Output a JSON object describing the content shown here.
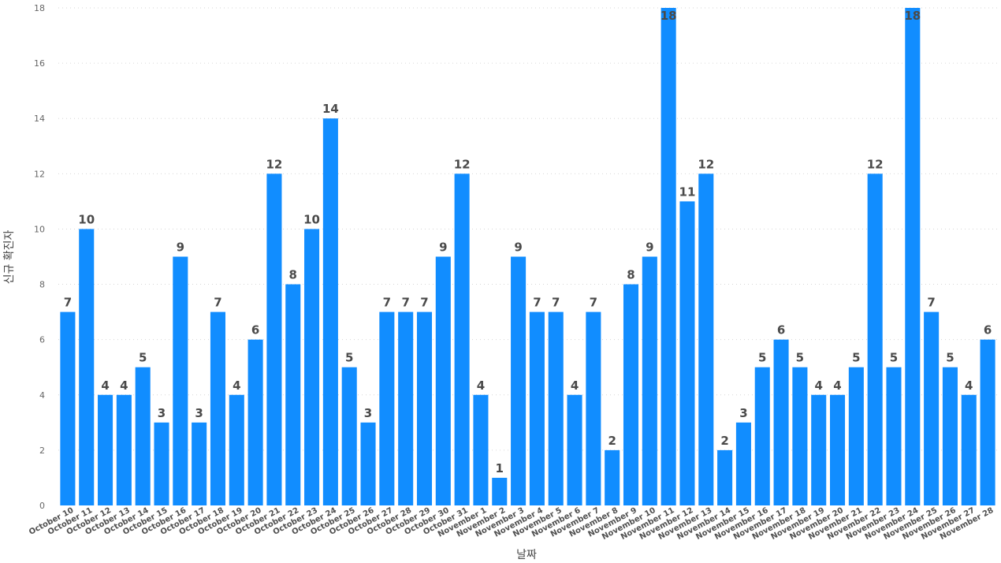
{
  "chart_data": {
    "type": "bar",
    "title": "",
    "xlabel": "날짜",
    "ylabel": "신규 확진자",
    "ylim": [
      0,
      18
    ],
    "yticks": [
      0,
      2,
      4,
      6,
      8,
      10,
      12,
      14,
      16,
      18
    ],
    "grid": true,
    "bar_color": "#118DFF",
    "categories": [
      "October 10",
      "October 11",
      "October 12",
      "October 13",
      "October 14",
      "October 15",
      "October 16",
      "October 17",
      "October 18",
      "October 19",
      "October 20",
      "October 21",
      "October 22",
      "October 23",
      "October 24",
      "October 25",
      "October 26",
      "October 27",
      "October 28",
      "October 29",
      "October 30",
      "October 31",
      "November 1",
      "November 2",
      "November 3",
      "November 4",
      "November 5",
      "November 6",
      "November 7",
      "November 8",
      "November 9",
      "November 10",
      "November 11",
      "November 12",
      "November 13",
      "November 14",
      "November 15",
      "November 16",
      "November 17",
      "November 18",
      "November 19",
      "November 20",
      "November 21",
      "November 22",
      "November 23",
      "November 24",
      "November 25",
      "November 26",
      "November 27",
      "November 28"
    ],
    "values": [
      7,
      10,
      4,
      4,
      5,
      3,
      9,
      3,
      7,
      4,
      6,
      12,
      8,
      10,
      14,
      5,
      3,
      7,
      7,
      7,
      9,
      12,
      4,
      1,
      9,
      7,
      7,
      4,
      7,
      2,
      8,
      9,
      18,
      11,
      12,
      2,
      3,
      5,
      6,
      5,
      4,
      4,
      5,
      12,
      5,
      18,
      7,
      5,
      4,
      6
    ]
  }
}
